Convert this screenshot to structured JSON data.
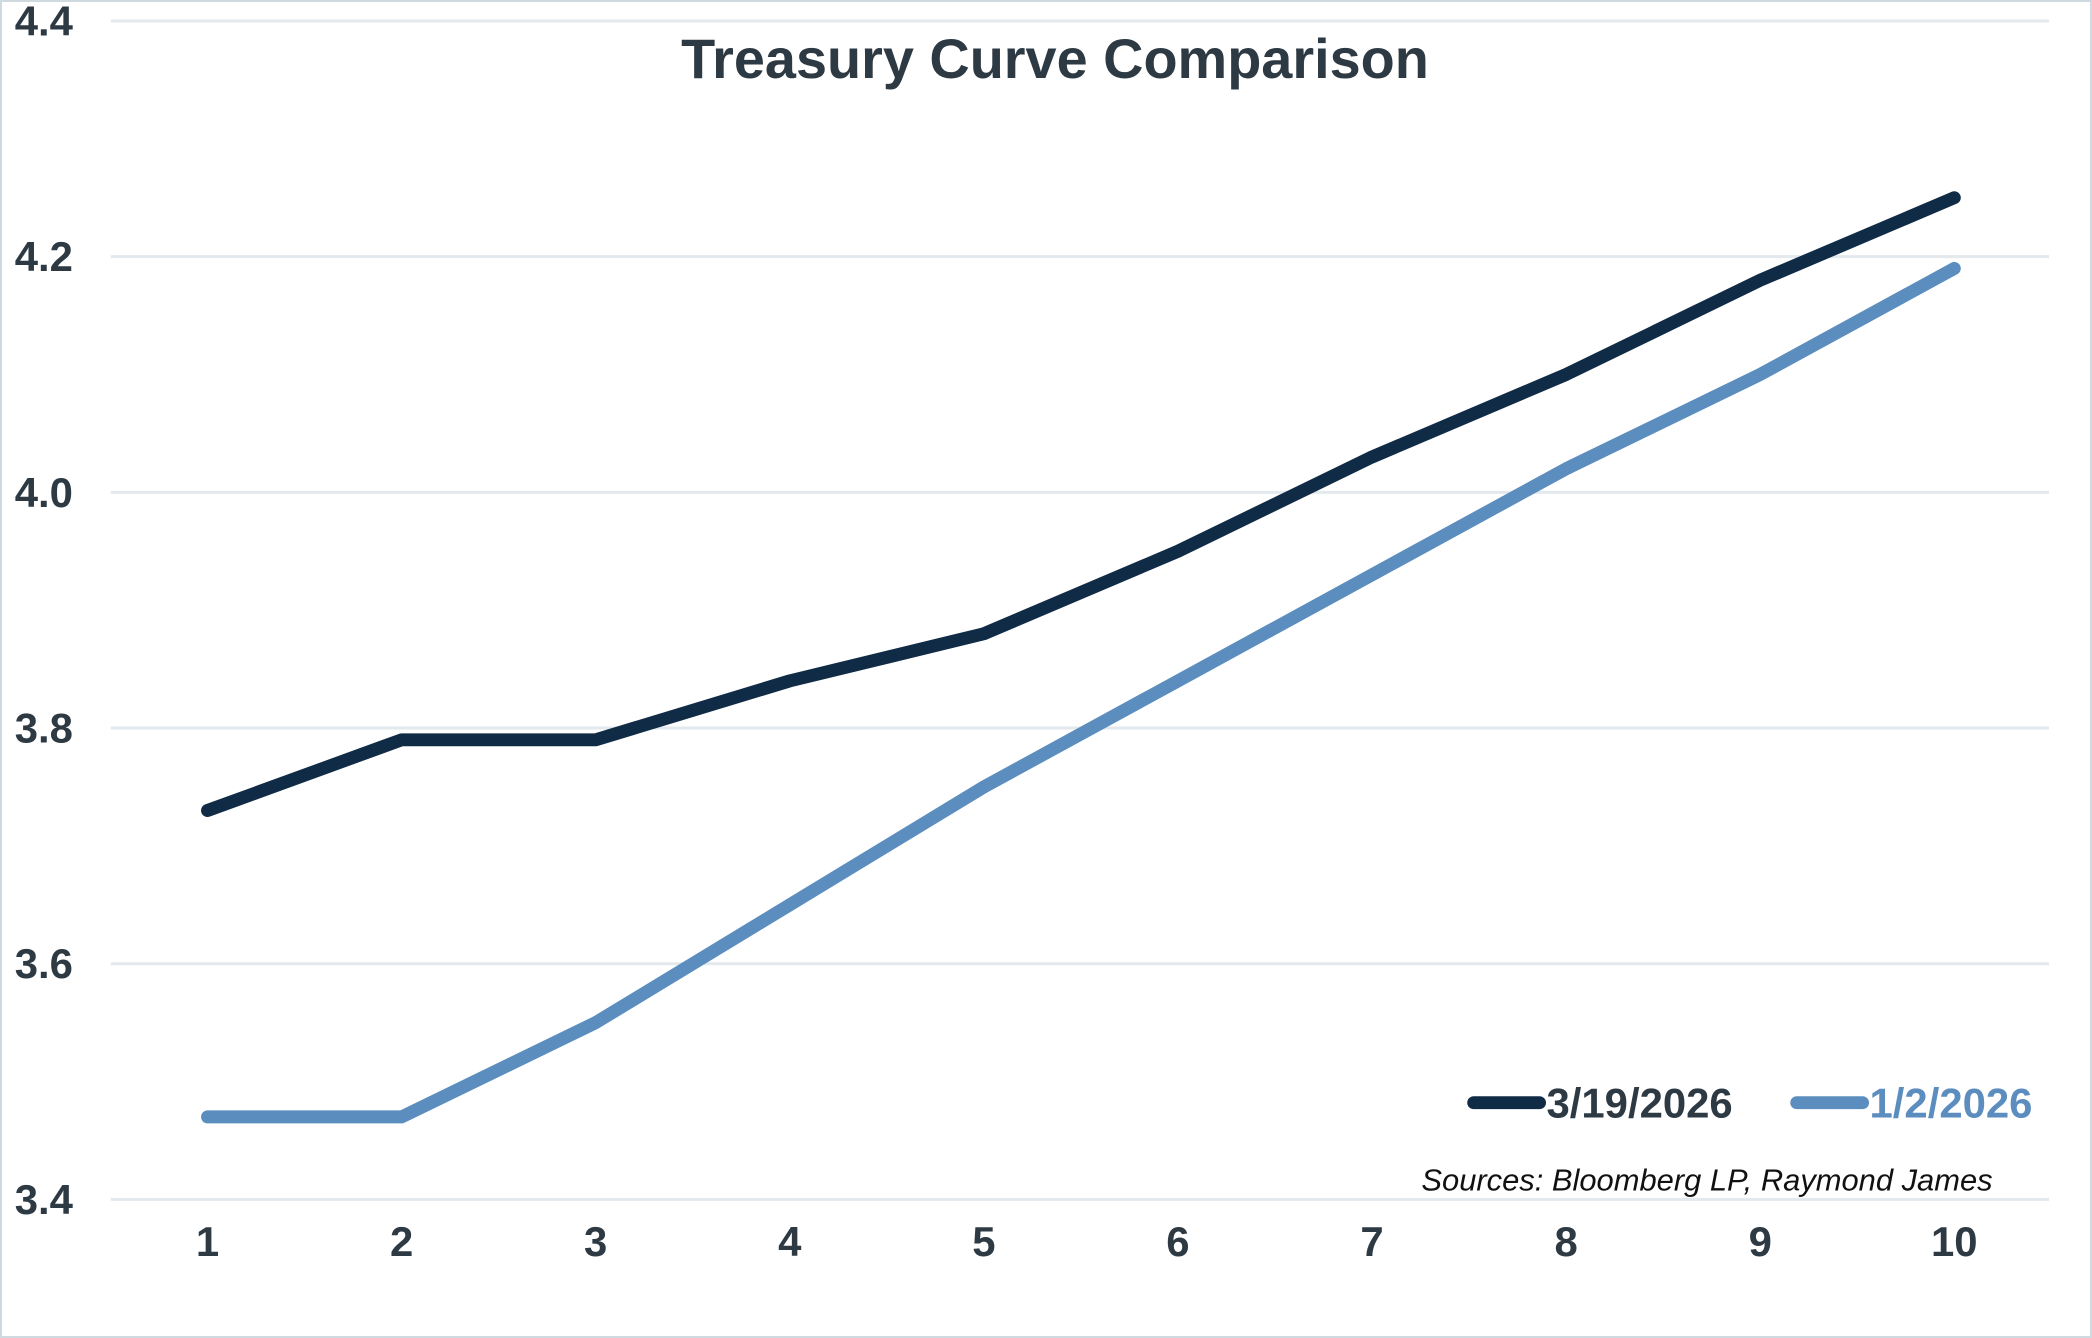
{
  "chart_data": {
    "type": "line",
    "title": "Treasury Curve Comparison",
    "x_categories": [
      "1",
      "2",
      "3",
      "4",
      "5",
      "6",
      "7",
      "8",
      "9",
      "10"
    ],
    "xlabel": "",
    "ylabel": "",
    "ylim": [
      3.4,
      4.4
    ],
    "y_ticks": [
      "3.4",
      "3.6",
      "3.8",
      "4.0",
      "4.2",
      "4.4"
    ],
    "grid": "horizontal-only",
    "legend_position": "bottom-right-inside",
    "series": [
      {
        "name": "3/19/2026",
        "color": "#102B45",
        "values": [
          3.73,
          3.79,
          3.79,
          3.84,
          3.88,
          3.95,
          4.03,
          4.1,
          4.18,
          4.25
        ]
      },
      {
        "name": "1/2/2026",
        "color": "#5B8DBE",
        "values": [
          3.47,
          3.47,
          3.55,
          3.65,
          3.75,
          3.84,
          3.93,
          4.02,
          4.1,
          4.19
        ]
      }
    ],
    "source": "Sources: Bloomberg LP, Raymond James"
  },
  "colors": {
    "text": "#2E3A43",
    "grid": "#E3E9ED",
    "border": "#CFD9E0",
    "background": "#FFFFFF"
  }
}
